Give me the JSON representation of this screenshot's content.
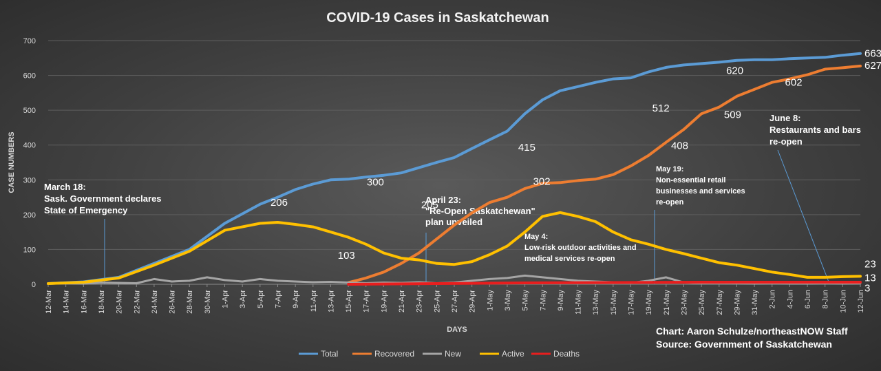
{
  "chart_data": {
    "type": "line",
    "title": "COVID-19 Cases in Saskatchewan",
    "xlabel": "DAYS",
    "ylabel": "CASE NUMBERS",
    "ylim": [
      0,
      700
    ],
    "yticks": [
      0,
      100,
      200,
      300,
      400,
      500,
      600,
      700
    ],
    "grid": true,
    "legend_position": "bottom",
    "tick_labels": [
      "12-Mar",
      "14-Mar",
      "16-Mar",
      "18-Mar",
      "20-Mar",
      "22-Mar",
      "24-Mar",
      "26-Mar",
      "28-Mar",
      "30-Mar",
      "1-Apr",
      "3-Apr",
      "5-Apr",
      "7-Apr",
      "9-Apr",
      "11-Apr",
      "13-Apr",
      "15-Apr",
      "17-Apr",
      "19-Apr",
      "21-Apr",
      "23-Apr",
      "25-Apr",
      "27-Apr",
      "29-Apr",
      "1-May",
      "3-May",
      "5-May",
      "7-May",
      "9-May",
      "11-May",
      "13-May",
      "15-May",
      "17-May",
      "19-May",
      "21-May",
      "23-May",
      "25-May",
      "27-May",
      "29-May",
      "31-May",
      "2-Jun",
      "4-Jun",
      "6-Jun",
      "8-Jun",
      "10-Jun",
      "12-Jun"
    ],
    "series": [
      {
        "name": "Total",
        "color": "#5b9bd5",
        "x": [
          0,
          4,
          8,
          12,
          16,
          20,
          24,
          26,
          28,
          30,
          32,
          34,
          36,
          38,
          40,
          42,
          44,
          46,
          48,
          50,
          52,
          54,
          56,
          58,
          60,
          62,
          64,
          66,
          68,
          70,
          72,
          74,
          76,
          78,
          80,
          82,
          84,
          86,
          88,
          90,
          92
        ],
        "values": [
          2,
          7,
          20,
          60,
          100,
          175,
          230,
          250,
          272,
          288,
          300,
          302,
          308,
          313,
          320,
          335,
          350,
          364,
          390,
          415,
          440,
          490,
          530,
          556,
          568,
          580,
          590,
          593,
          610,
          623,
          630,
          634,
          638,
          643,
          645,
          645,
          648,
          650,
          652,
          658,
          663
        ]
      },
      {
        "name": "Recovered",
        "color": "#ed7d31",
        "x": [
          34,
          36,
          38,
          40,
          42,
          44,
          46,
          48,
          50,
          52,
          54,
          56,
          58,
          60,
          62,
          64,
          66,
          68,
          70,
          72,
          74,
          76,
          78,
          80,
          82,
          84,
          86,
          88,
          90,
          92
        ],
        "values": [
          5,
          18,
          35,
          60,
          90,
          130,
          170,
          205,
          235,
          250,
          275,
          290,
          292,
          298,
          302,
          315,
          340,
          370,
          408,
          445,
          490,
          509,
          540,
          560,
          580,
          590,
          602,
          618,
          622,
          627
        ]
      },
      {
        "name": "New",
        "color": "#a5a5a5",
        "x": [
          0,
          2,
          4,
          6,
          8,
          10,
          12,
          14,
          16,
          18,
          20,
          22,
          24,
          26,
          28,
          30,
          32,
          34,
          36,
          38,
          40,
          42,
          44,
          46,
          48,
          50,
          52,
          54,
          56,
          58,
          60,
          62,
          64,
          66,
          68,
          70,
          72,
          74,
          76,
          78,
          80,
          82,
          84,
          86,
          88,
          90,
          92
        ],
        "values": [
          2,
          3,
          2,
          5,
          4,
          3,
          15,
          8,
          10,
          20,
          12,
          8,
          15,
          10,
          8,
          6,
          7,
          5,
          3,
          5,
          4,
          6,
          3,
          5,
          10,
          15,
          18,
          25,
          20,
          15,
          10,
          8,
          6,
          4,
          10,
          20,
          5,
          3,
          4,
          3,
          2,
          3,
          2,
          2,
          3,
          2,
          3
        ]
      },
      {
        "name": "Active",
        "color": "#ffc000",
        "x": [
          0,
          4,
          8,
          12,
          16,
          20,
          24,
          26,
          28,
          30,
          32,
          34,
          36,
          38,
          40,
          42,
          44,
          46,
          48,
          50,
          52,
          54,
          56,
          58,
          60,
          62,
          64,
          66,
          68,
          70,
          72,
          74,
          76,
          78,
          80,
          82,
          84,
          86,
          88,
          90,
          92
        ],
        "values": [
          2,
          6,
          18,
          55,
          95,
          155,
          175,
          178,
          172,
          165,
          150,
          135,
          115,
          90,
          75,
          70,
          60,
          57,
          65,
          85,
          110,
          150,
          195,
          206,
          195,
          180,
          150,
          128,
          115,
          100,
          88,
          75,
          62,
          55,
          45,
          35,
          28,
          20,
          20,
          22,
          23
        ]
      },
      {
        "name": "Deaths",
        "color": "#e81e1e",
        "x": [
          34,
          44,
          54,
          64,
          74,
          84,
          92
        ],
        "values": [
          0,
          2,
          4,
          5,
          6,
          6,
          6
        ]
      }
    ],
    "point_labels": [
      {
        "text": "206",
        "x": 26,
        "y": 206
      },
      {
        "text": "103",
        "x": 33,
        "y": 103
      },
      {
        "text": "300",
        "x": 38,
        "y": 300
      },
      {
        "text": "205",
        "x": 44,
        "y": 205
      },
      {
        "text": "302",
        "x": 57,
        "y": 302
      },
      {
        "text": "415",
        "x": 55,
        "y": 415
      },
      {
        "text": "512",
        "x": 68,
        "y": 512
      },
      {
        "text": "408",
        "x": 72,
        "y": 408
      },
      {
        "text": "509",
        "x": 78,
        "y": 509
      },
      {
        "text": "620",
        "x": 77,
        "y": 620
      },
      {
        "text": "602",
        "x": 86,
        "y": 602
      },
      {
        "text": "663",
        "x": 92,
        "y": 663
      },
      {
        "text": "627",
        "x": 92,
        "y": 627
      },
      {
        "text": "23",
        "x": 92,
        "y": 23
      },
      {
        "text": "13",
        "x": 92,
        "y": 13
      },
      {
        "text": "3",
        "x": 92,
        "y": 3
      }
    ],
    "annotations": [
      {
        "id": "march18",
        "lines": [
          "March 18:",
          "Sask. Government declares",
          "State of Emergency"
        ],
        "x_day": 6
      },
      {
        "id": "april23",
        "lines": [
          "April 23:",
          "\"Re-Open Saskatchewan\"",
          "plan unveiled"
        ],
        "x_day": 42
      },
      {
        "id": "may4",
        "lines": [
          "May 4:",
          "Low-risk outdoor activities and",
          "medical services re-open"
        ],
        "x_day": 53
      },
      {
        "id": "may19",
        "lines": [
          "May 19:",
          "Non-essential retail",
          "businesses and services",
          "re-open"
        ],
        "x_day": 68
      },
      {
        "id": "june8",
        "lines": [
          "June 8:",
          "Restaurants and bars",
          "re-open"
        ],
        "x_day": 88
      }
    ],
    "credit": [
      "Chart: Aaron Schulze/northeastNOW Staff",
      "Source: Government of Saskatchewan"
    ]
  }
}
